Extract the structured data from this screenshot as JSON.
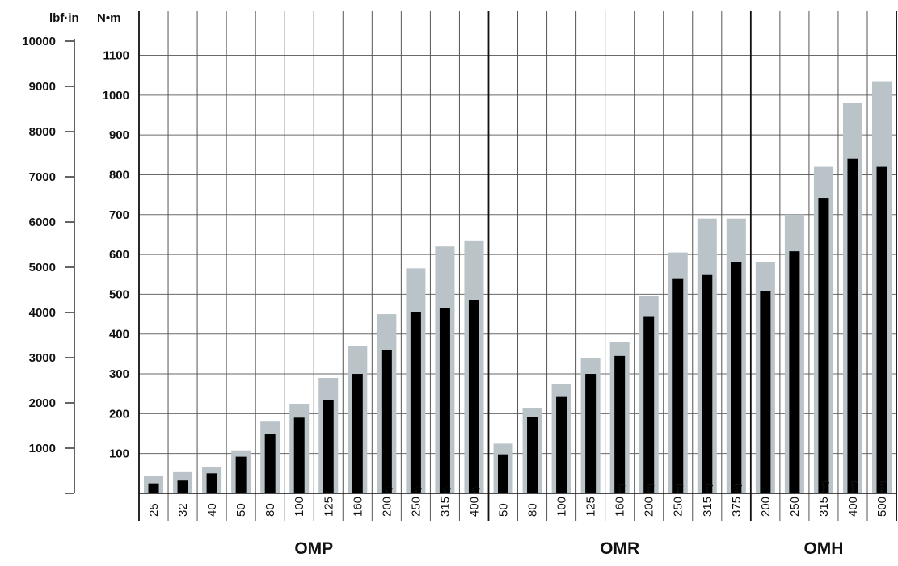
{
  "chart_data": {
    "type": "bar",
    "units": {
      "left": "lbf·in",
      "right": "N•m"
    },
    "y_nm": {
      "ticks": [
        100,
        200,
        300,
        400,
        500,
        600,
        700,
        800,
        900,
        1000,
        1100
      ],
      "ylim": [
        0,
        1100
      ]
    },
    "y_lbfin": {
      "ticks": [
        1000,
        2000,
        3000,
        4000,
        5000,
        6000,
        7000,
        8000,
        9000,
        10000
      ]
    },
    "grid": true,
    "groups": [
      {
        "name": "OMP",
        "categories": [
          "25",
          "32",
          "40",
          "50",
          "80",
          "100",
          "125",
          "160",
          "200",
          "250",
          "315",
          "400"
        ],
        "notes": [
          "",
          "",
          "",
          "",
          "",
          "",
          "",
          "",
          "*)",
          "*)",
          "*)",
          "*)"
        ]
      },
      {
        "name": "OMR",
        "categories": [
          "50",
          "80",
          "100",
          "125",
          "160",
          "200",
          "250",
          "315",
          "375"
        ],
        "notes": [
          "",
          "",
          "",
          "",
          "**)",
          "**)",
          "**)",
          "**)",
          "**)"
        ]
      },
      {
        "name": "OMH",
        "categories": [
          "200",
          "250",
          "315",
          "400",
          "500"
        ],
        "notes": [
          "",
          "",
          "***)",
          "***)",
          "***)"
        ]
      }
    ],
    "series": [
      {
        "color": "#b9c3c8",
        "values": [
          43,
          55,
          65,
          108,
          180,
          225,
          290,
          370,
          450,
          565,
          620,
          635,
          125,
          215,
          275,
          340,
          380,
          495,
          605,
          690,
          690,
          580,
          700,
          820,
          980,
          1035
        ]
      },
      {
        "color": "#000000",
        "values": [
          25,
          32,
          50,
          92,
          148,
          190,
          235,
          300,
          360,
          455,
          465,
          485,
          98,
          192,
          242,
          300,
          345,
          445,
          540,
          550,
          580,
          508,
          608,
          742,
          840,
          820
        ]
      }
    ]
  }
}
